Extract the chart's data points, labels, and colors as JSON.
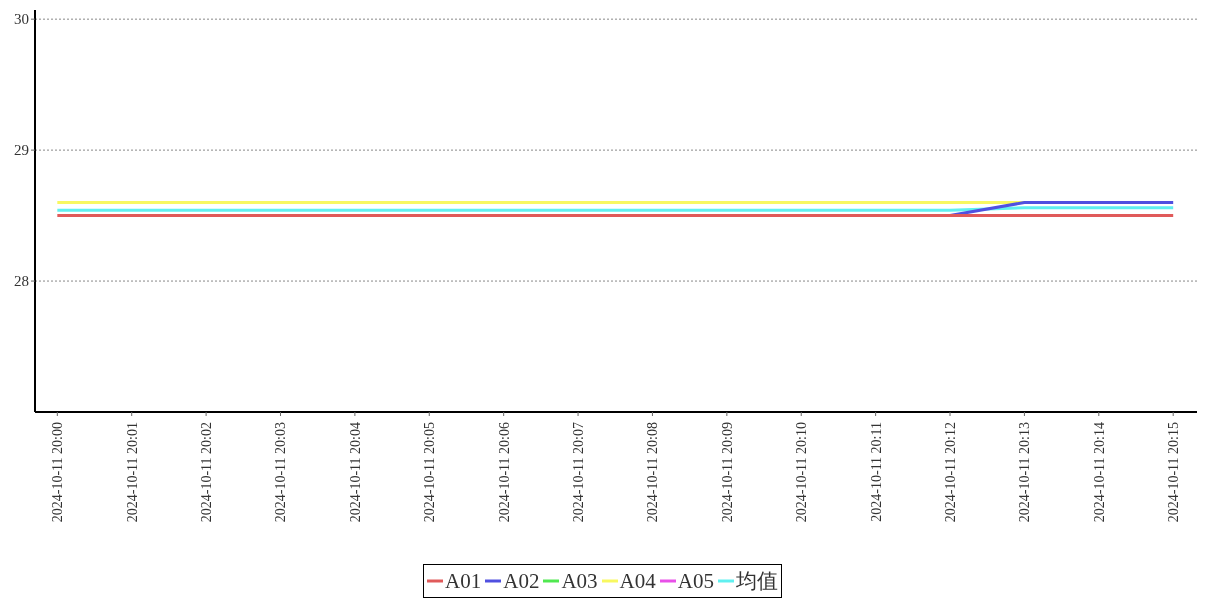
{
  "chart_data": {
    "type": "line",
    "categories": [
      "2024-10-11 20:00",
      "2024-10-11 20:01",
      "2024-10-11 20:02",
      "2024-10-11 20:03",
      "2024-10-11 20:04",
      "2024-10-11 20:05",
      "2024-10-11 20:06",
      "2024-10-11 20:07",
      "2024-10-11 20:08",
      "2024-10-11 20:09",
      "2024-10-11 20:10",
      "2024-10-11 20:11",
      "2024-10-11 20:12",
      "2024-10-11 20:13",
      "2024-10-11 20:14",
      "2024-10-11 20:15"
    ],
    "series": [
      {
        "name": "A01",
        "color": "#e05a5a",
        "values": [
          28.5,
          28.5,
          28.5,
          28.5,
          28.5,
          28.5,
          28.5,
          28.5,
          28.5,
          28.5,
          28.5,
          28.5,
          28.5,
          28.5,
          28.5,
          28.5
        ]
      },
      {
        "name": "A02",
        "color": "#5050e0",
        "values": [
          null,
          null,
          null,
          null,
          null,
          null,
          null,
          null,
          null,
          null,
          null,
          null,
          28.5,
          28.6,
          28.6,
          28.6
        ]
      },
      {
        "name": "A03",
        "color": "#50e850",
        "values": [
          null,
          null,
          null,
          null,
          null,
          null,
          null,
          null,
          null,
          null,
          null,
          null,
          null,
          null,
          null,
          null
        ]
      },
      {
        "name": "A04",
        "color": "#f8f860",
        "values": [
          28.6,
          28.6,
          28.6,
          28.6,
          28.6,
          28.6,
          28.6,
          28.6,
          28.6,
          28.6,
          28.6,
          28.6,
          28.6,
          28.6,
          null,
          null
        ]
      },
      {
        "name": "A05",
        "color": "#e850e8",
        "values": [
          null,
          null,
          null,
          null,
          null,
          null,
          null,
          null,
          null,
          null,
          null,
          null,
          null,
          null,
          null,
          null
        ]
      },
      {
        "name": "均值",
        "color": "#60f0f0",
        "values": [
          28.54,
          28.54,
          28.54,
          28.54,
          28.54,
          28.54,
          28.54,
          28.54,
          28.54,
          28.54,
          28.54,
          28.54,
          28.54,
          28.56,
          28.56,
          28.56
        ]
      }
    ],
    "ylim": [
      27,
      30.07
    ],
    "yticks": [
      28,
      29,
      30
    ],
    "grid": "y",
    "legend": "bottom"
  }
}
